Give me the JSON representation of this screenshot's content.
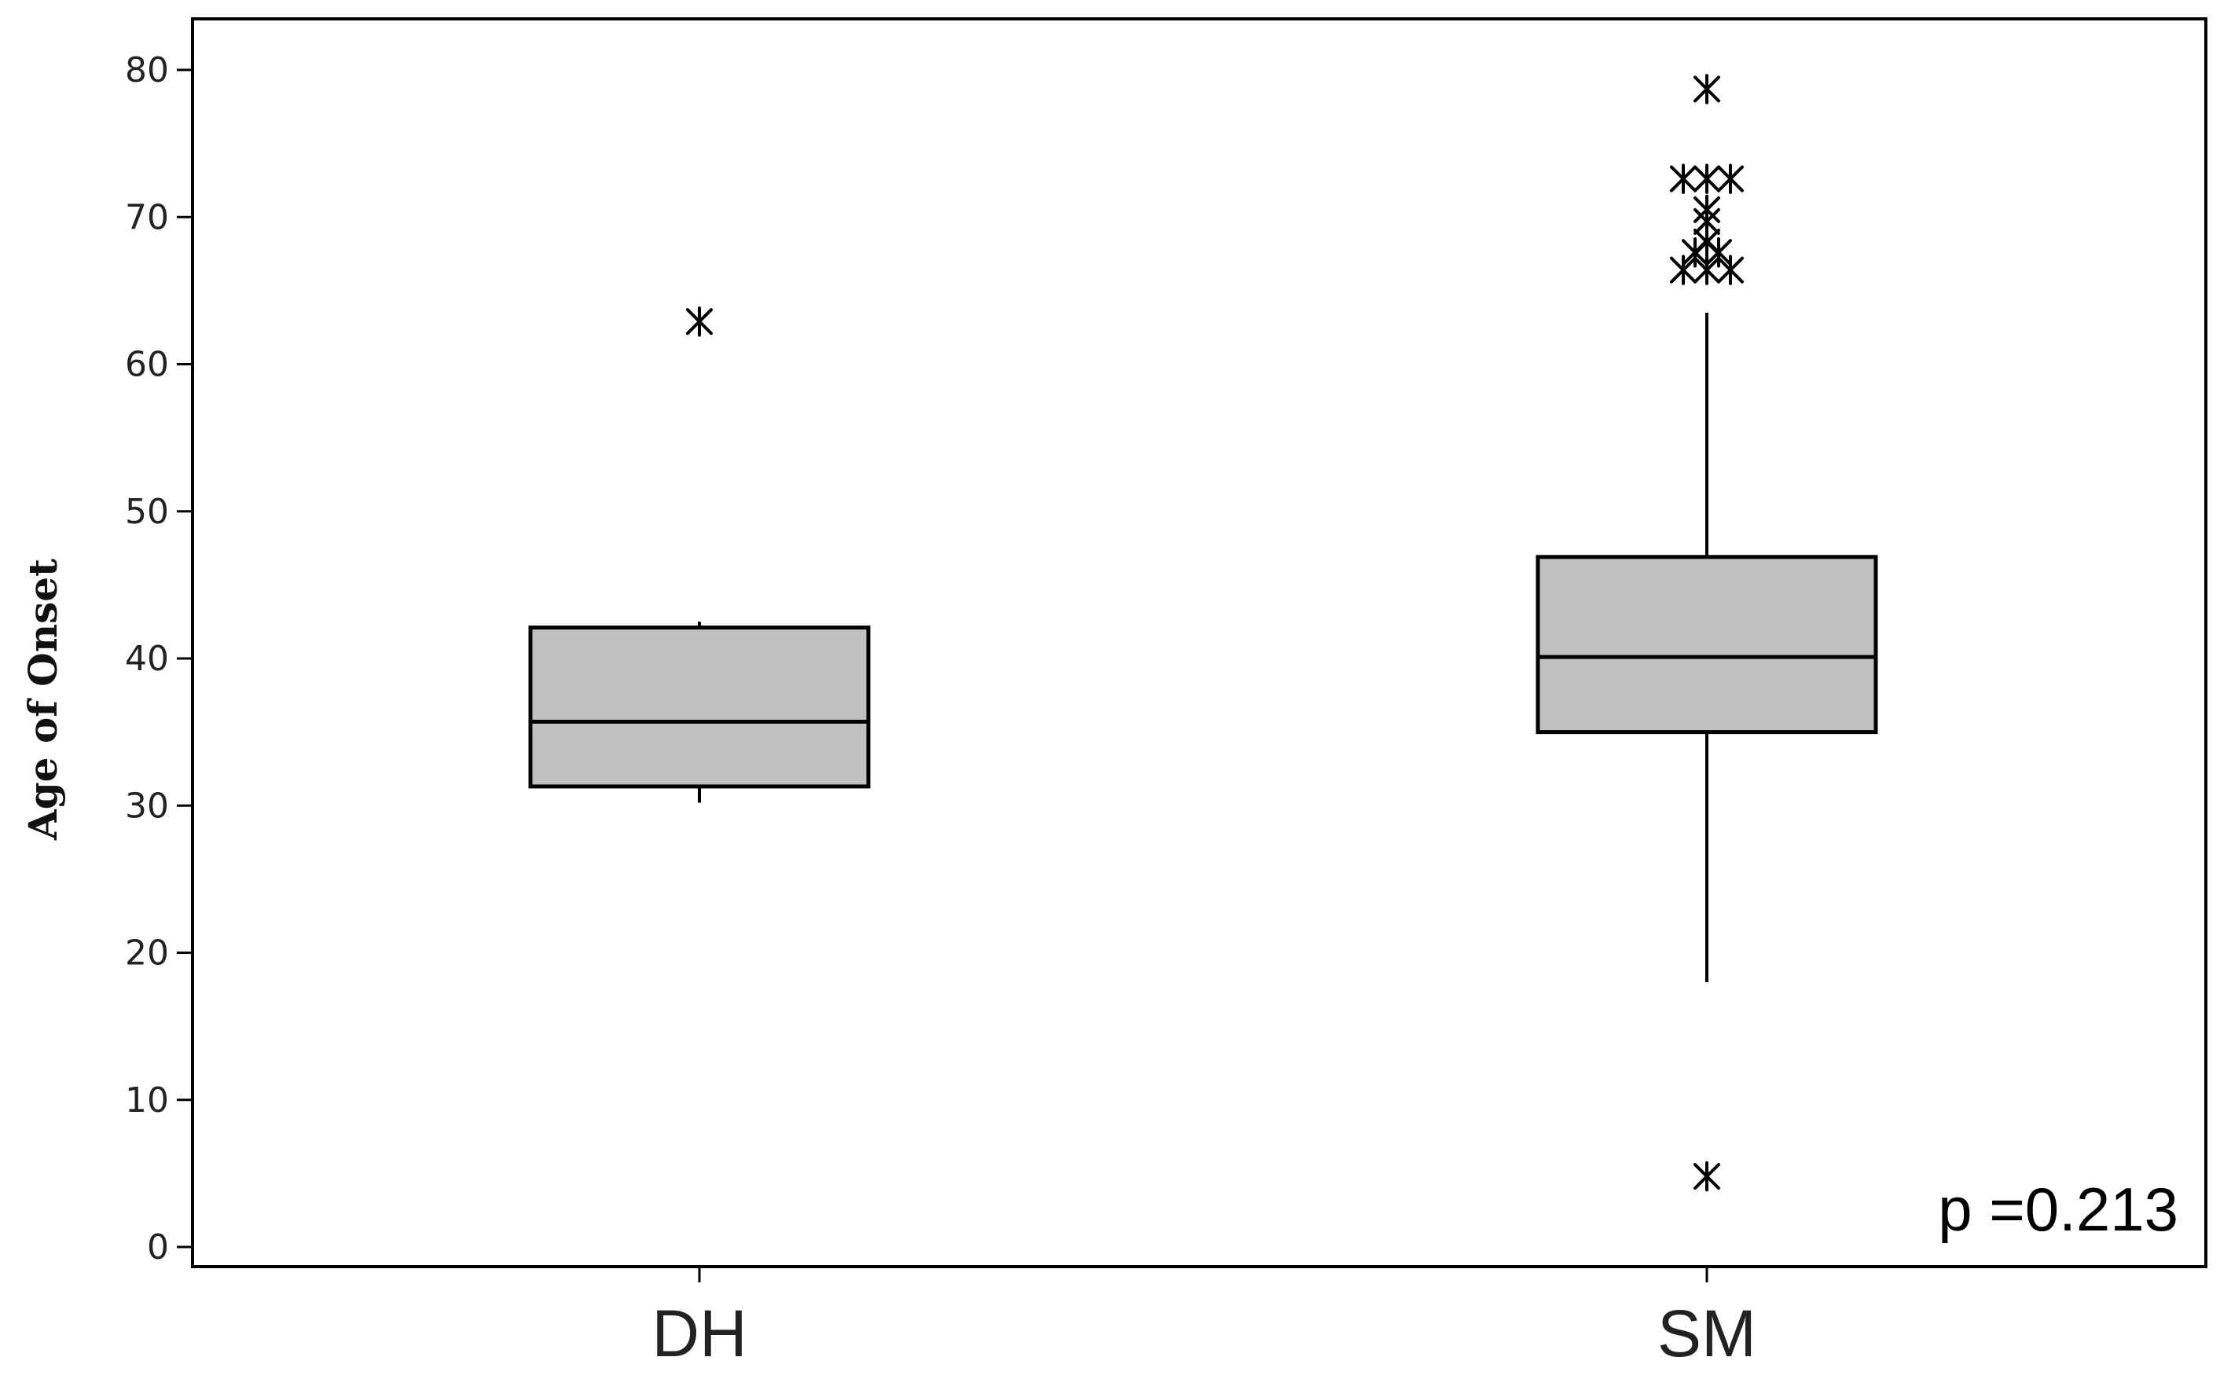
{
  "chart_data": {
    "type": "boxplot",
    "title": "",
    "xlabel": "",
    "ylabel": "Age of Onset",
    "ylim": [
      0,
      80
    ],
    "yticks": [
      0,
      10,
      20,
      30,
      40,
      50,
      60,
      70,
      80
    ],
    "grid": false,
    "legend": "none",
    "categories": [
      "DH",
      "SM"
    ],
    "box_color": "#c0c0c0",
    "line_color": "#000000",
    "series": [
      {
        "category": "DH",
        "whisker_low": 30.2,
        "q1": 31.3,
        "median": 35.7,
        "q3": 42.1,
        "whisker_high": 42.5,
        "outliers": [
          62.9
        ]
      },
      {
        "category": "SM",
        "whisker_low": 18,
        "q1": 35,
        "median": 40.1,
        "q3": 46.9,
        "whisker_high": 63.5,
        "outliers": [
          4.8,
          66.4,
          66.4,
          66.4,
          67.6,
          67.6,
          68.3,
          69.7,
          70.5,
          72.6,
          72.6,
          72.6,
          78.7
        ]
      }
    ],
    "annotation": "p =0.213"
  }
}
